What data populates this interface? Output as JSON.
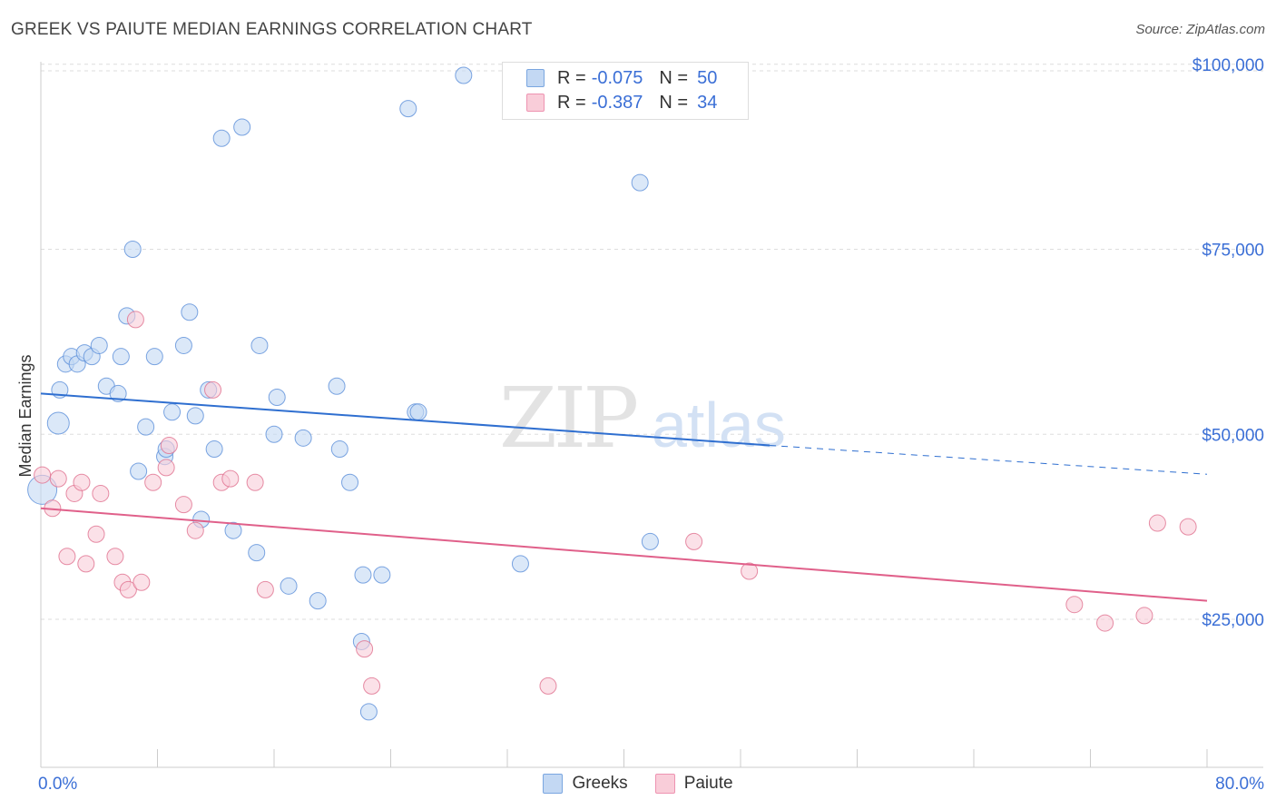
{
  "title": "GREEK VS PAIUTE MEDIAN EARNINGS CORRELATION CHART",
  "source": "Source: ZipAtlas.com",
  "watermark": {
    "zip": "ZIP",
    "atlas": "atlas"
  },
  "legend": {
    "rows": [
      {
        "r_label": "R =",
        "r_value": "-0.075",
        "n_label": "N =",
        "n_value": "50",
        "color": "#a9c8f0",
        "border": "#7aa6e0"
      },
      {
        "r_label": "R =",
        "r_value": "-0.387",
        "n_label": "N =",
        "n_value": "34",
        "color": "#f9c1d3",
        "border": "#ee93b1"
      }
    ]
  },
  "chart_data": {
    "type": "scatter",
    "ylabel": "Median Earnings",
    "xlim": [
      0,
      80
    ],
    "ylim": [
      5000,
      105000
    ],
    "x_tick_labels": [
      "0.0%",
      "80.0%"
    ],
    "y_ticks": [
      25000,
      50000,
      75000,
      100000
    ],
    "y_tick_labels": [
      "$25,000",
      "$50,000",
      "$75,000",
      "$100,000"
    ],
    "series": [
      {
        "name": "Greeks",
        "color": "#5b8fd9",
        "fill": "#c3d8f3",
        "points": [
          [
            1.2,
            51500
          ],
          [
            1.3,
            56000
          ],
          [
            1.7,
            59500
          ],
          [
            2.1,
            60500
          ],
          [
            2.5,
            59500
          ],
          [
            3.0,
            61000
          ],
          [
            3.5,
            60500
          ],
          [
            4.0,
            62000
          ],
          [
            4.5,
            56500
          ],
          [
            5.3,
            55500
          ],
          [
            5.5,
            60500
          ],
          [
            6.3,
            75000
          ],
          [
            5.9,
            66000
          ],
          [
            6.7,
            45000
          ],
          [
            7.2,
            51000
          ],
          [
            7.8,
            60500
          ],
          [
            8.5,
            47000
          ],
          [
            9.0,
            53000
          ],
          [
            9.8,
            62000
          ],
          [
            10.2,
            66500
          ],
          [
            10.6,
            52500
          ],
          [
            11.0,
            38500
          ],
          [
            11.5,
            56000
          ],
          [
            11.9,
            48000
          ],
          [
            12.4,
            90000
          ],
          [
            13.2,
            37000
          ],
          [
            13.8,
            91500
          ],
          [
            14.8,
            34000
          ],
          [
            15.0,
            62000
          ],
          [
            16.0,
            50000
          ],
          [
            16.2,
            55000
          ],
          [
            17.0,
            29500
          ],
          [
            18.0,
            49500
          ],
          [
            19.0,
            27500
          ],
          [
            20.3,
            56500
          ],
          [
            20.5,
            48000
          ],
          [
            21.2,
            43500
          ],
          [
            22.0,
            22000
          ],
          [
            22.1,
            31000
          ],
          [
            23.4,
            31000
          ],
          [
            22.5,
            12500
          ],
          [
            25.2,
            94000
          ],
          [
            25.7,
            53000
          ],
          [
            25.9,
            53000
          ],
          [
            29.0,
            98500
          ],
          [
            32.9,
            32500
          ],
          [
            41.1,
            84000
          ],
          [
            41.8,
            35500
          ],
          [
            0.1,
            42500
          ],
          [
            8.6,
            48000
          ]
        ],
        "trend": {
          "x0": 0,
          "y0": 55500,
          "x1": 50,
          "y1": 48500,
          "dash_x1": 80,
          "dash_y1": 44600
        }
      },
      {
        "name": "Paiute",
        "color": "#e0708f",
        "fill": "#f9cdd9",
        "points": [
          [
            0.1,
            44500
          ],
          [
            0.8,
            40000
          ],
          [
            1.2,
            44000
          ],
          [
            1.8,
            33500
          ],
          [
            2.3,
            42000
          ],
          [
            2.8,
            43500
          ],
          [
            3.1,
            32500
          ],
          [
            3.8,
            36500
          ],
          [
            4.1,
            42000
          ],
          [
            5.1,
            33500
          ],
          [
            5.6,
            30000
          ],
          [
            6.0,
            29000
          ],
          [
            6.5,
            65500
          ],
          [
            6.9,
            30000
          ],
          [
            7.7,
            43500
          ],
          [
            8.6,
            45500
          ],
          [
            8.8,
            48500
          ],
          [
            9.8,
            40500
          ],
          [
            10.6,
            37000
          ],
          [
            11.8,
            56000
          ],
          [
            12.4,
            43500
          ],
          [
            13.0,
            44000
          ],
          [
            14.7,
            43500
          ],
          [
            15.4,
            29000
          ],
          [
            22.2,
            21000
          ],
          [
            22.7,
            16000
          ],
          [
            34.8,
            16000
          ],
          [
            44.8,
            35500
          ],
          [
            48.6,
            31500
          ],
          [
            70.9,
            27000
          ],
          [
            73.0,
            24500
          ],
          [
            75.7,
            25500
          ],
          [
            76.6,
            38000
          ],
          [
            78.7,
            37500
          ]
        ],
        "trend": {
          "x0": 0,
          "y0": 40000,
          "x1": 80,
          "y1": 27500
        }
      }
    ]
  },
  "bottom_legend": [
    {
      "label": "Greeks",
      "color": "#c3d8f3",
      "border": "#7aa6e0"
    },
    {
      "label": "Paiute",
      "color": "#f9cdd9",
      "border": "#ee93b1"
    }
  ]
}
